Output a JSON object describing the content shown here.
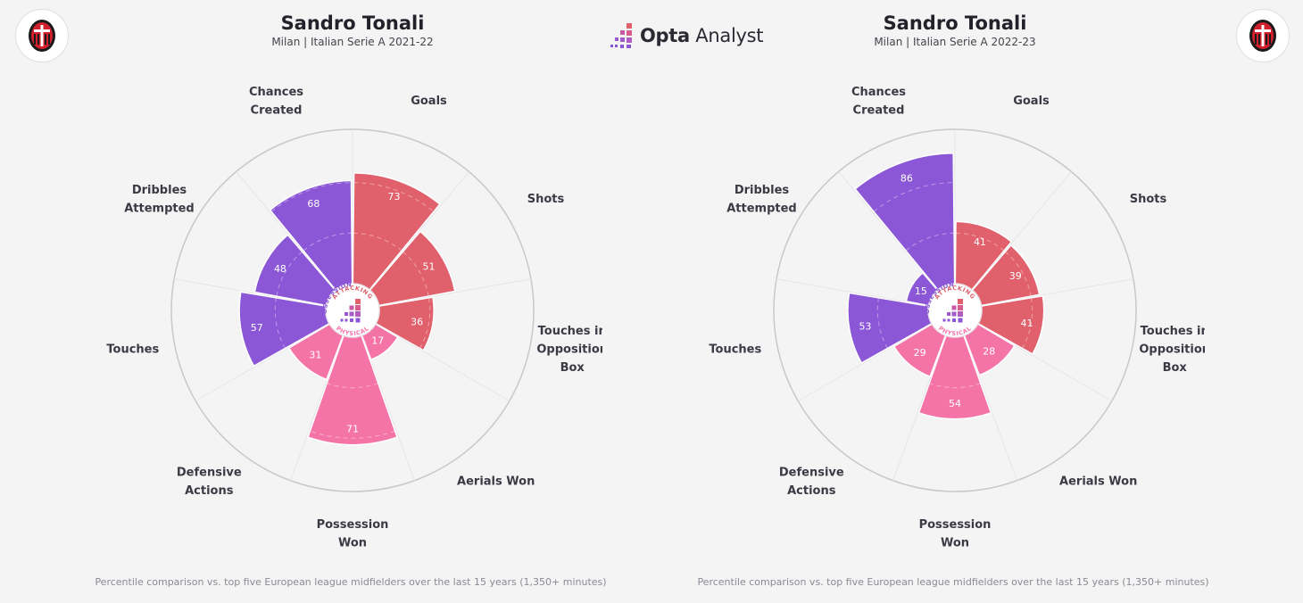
{
  "header": {
    "brand": {
      "prefix": "Opta",
      "suffix": "Analyst"
    }
  },
  "colors": {
    "attacking": "#e0606c",
    "possession": "#8b57d6",
    "physical": "#f574a8",
    "ring": "#c8c8cc",
    "label": "#3a3a44"
  },
  "chart_data": [
    {
      "type": "radar",
      "title": "Sandro Tonali",
      "subtitle": "Milan | Italian Serie A 2021-22",
      "footnote": "Percentile comparison vs. top five European league midfielders over the last 15 years (1,350+ minutes)",
      "range": [
        0,
        100
      ],
      "center_labels": [
        "ATTACKING",
        "POSSESSION",
        "PHYSICAL"
      ],
      "categories": [
        {
          "label": [
            "Goals"
          ],
          "value": 73,
          "group": "attacking"
        },
        {
          "label": [
            "Shots"
          ],
          "value": 51,
          "group": "attacking"
        },
        {
          "label": [
            "Touches in",
            "Opposition",
            "Box"
          ],
          "value": 36,
          "group": "attacking"
        },
        {
          "label": [
            "Aerials Won"
          ],
          "value": 17,
          "group": "physical"
        },
        {
          "label": [
            "Possession",
            "Won"
          ],
          "value": 71,
          "group": "physical"
        },
        {
          "label": [
            "Defensive",
            "Actions"
          ],
          "value": 31,
          "group": "physical"
        },
        {
          "label": [
            "Touches"
          ],
          "value": 57,
          "group": "possession"
        },
        {
          "label": [
            "Dribbles",
            "Attempted"
          ],
          "value": 48,
          "group": "possession"
        },
        {
          "label": [
            "Chances",
            "Created"
          ],
          "value": 68,
          "group": "possession"
        }
      ]
    },
    {
      "type": "radar",
      "title": "Sandro Tonali",
      "subtitle": "Milan | Italian Serie A 2022-23",
      "footnote": "Percentile comparison vs. top five European league midfielders over the last 15 years (1,350+ minutes)",
      "range": [
        0,
        100
      ],
      "center_labels": [
        "ATTACKING",
        "POSSESSION",
        "PHYSICAL"
      ],
      "categories": [
        {
          "label": [
            "Goals"
          ],
          "value": 41,
          "group": "attacking"
        },
        {
          "label": [
            "Shots"
          ],
          "value": 39,
          "group": "attacking"
        },
        {
          "label": [
            "Touches in",
            "Opposition",
            "Box"
          ],
          "value": 41,
          "group": "attacking"
        },
        {
          "label": [
            "Aerials Won"
          ],
          "value": 28,
          "group": "physical"
        },
        {
          "label": [
            "Possession",
            "Won"
          ],
          "value": 54,
          "group": "physical"
        },
        {
          "label": [
            "Defensive",
            "Actions"
          ],
          "value": 29,
          "group": "physical"
        },
        {
          "label": [
            "Touches"
          ],
          "value": 53,
          "group": "possession"
        },
        {
          "label": [
            "Dribbles",
            "Attempted"
          ],
          "value": 15,
          "group": "possession"
        },
        {
          "label": [
            "Chances",
            "Created"
          ],
          "value": 86,
          "group": "possession"
        }
      ]
    }
  ]
}
